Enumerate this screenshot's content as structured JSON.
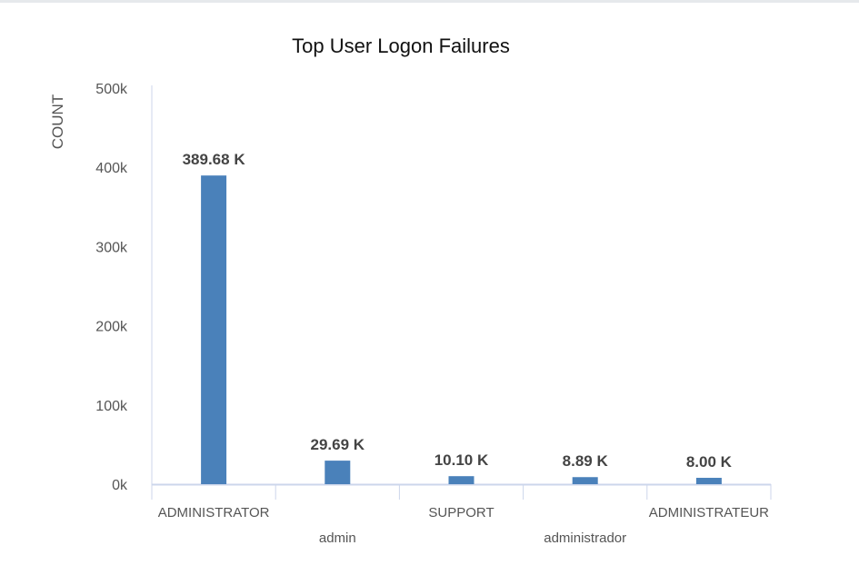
{
  "chart_data": {
    "type": "bar",
    "title": "Top User Logon Failures",
    "xlabel": "",
    "ylabel": "COUNT",
    "categories": [
      "ADMINISTRATOR",
      "admin",
      "SUPPORT",
      "administrador",
      "ADMINISTRATEUR"
    ],
    "values": [
      389680,
      29690,
      10100,
      8890,
      8000
    ],
    "data_labels": [
      "389.68 K",
      "29.69 K",
      "10.10 K",
      "8.89 K",
      "8.00 K"
    ],
    "ylim": [
      0,
      500000
    ],
    "yticks": [
      0,
      100000,
      200000,
      300000,
      400000,
      500000
    ],
    "ytick_labels": [
      "0k",
      "100k",
      "200k",
      "300k",
      "400k",
      "500k"
    ],
    "grid": false,
    "legend": "none",
    "bar_color": "#4a81ba"
  }
}
